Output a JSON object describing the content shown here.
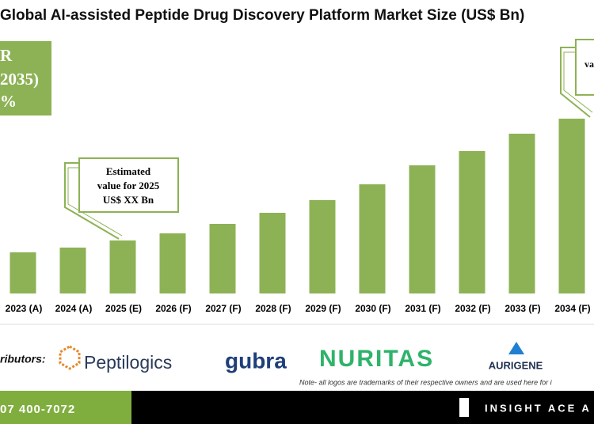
{
  "chart_data": {
    "type": "bar",
    "title": "Global AI-assisted Peptide Drug Discovery Platform Market Size (US$ Bn)",
    "categories": [
      "2023 (A)",
      "2024 (A)",
      "2025 (E)",
      "2026 (F)",
      "2027 (F)",
      "2028 (F)",
      "2029 (F)",
      "2030 (F)",
      "2031 (F)",
      "2032 (F)",
      "2033 (F)",
      "2034 (F)"
    ],
    "values": [
      52,
      58,
      67,
      76,
      88,
      102,
      118,
      138,
      162,
      180,
      202,
      221
    ],
    "color": "#8db255",
    "cagr_box": [
      "R",
      "2035)",
      "%"
    ],
    "annotations": [
      [
        "Estimated",
        "value for 2025",
        "US$ XX Bn"
      ],
      [
        "va"
      ]
    ]
  },
  "distributors": {
    "label": "ributors:",
    "logos": [
      "Peptilogics",
      "gubra",
      "NURITAS",
      "AURIGENE"
    ],
    "note": "Note- all logos are trademarks of their respective owners and are used here for i"
  },
  "footer": {
    "phone": "07 400-7072",
    "brand": "INSIGHT ACE A"
  }
}
